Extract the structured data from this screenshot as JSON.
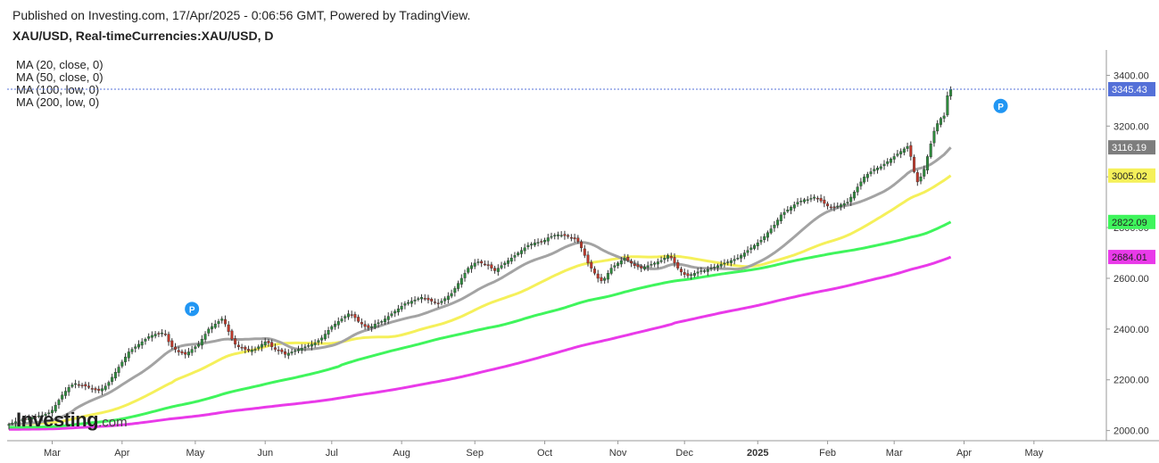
{
  "header": {
    "published": "Published on Investing.com, 17/Apr/2025 - 0:06:56 GMT, Powered by TradingView.",
    "symbol": "XAU/USD, Real-timeCurrencies:XAU/USD, D"
  },
  "legend": [
    "MA (20, close, 0)",
    "MA (50, close, 0)",
    "MA (100, low, 0)",
    "MA (200, low, 0)"
  ],
  "logo": {
    "main": "Investing",
    "suffix": ".com"
  },
  "chart_data": {
    "type": "line",
    "subtype": "candlestick",
    "title": "XAU/USD, Real-timeCurrencies:XAU/USD, D",
    "ylim": [
      1960,
      3500
    ],
    "y_ticks": [
      2000,
      2200,
      2400,
      2600,
      2800,
      3000,
      3200,
      3400
    ],
    "y_tick_labels": [
      "2000.00",
      "2200.00",
      "2400.00",
      "2600.00",
      "2800.00",
      "3000.00",
      "3200.00",
      "3400.00"
    ],
    "x_tick_labels": [
      "Mar",
      "Apr",
      "May",
      "Jun",
      "Jul",
      "Aug",
      "Sep",
      "Oct",
      "Nov",
      "Dec",
      "2025",
      "Feb",
      "Mar",
      "Apr",
      "May"
    ],
    "x_tick_index": [
      13,
      34,
      56,
      77,
      97,
      118,
      140,
      161,
      183,
      203,
      225,
      246,
      266,
      287,
      308
    ],
    "bar_count": 306,
    "close": [
      2025,
      2030,
      2035,
      2040,
      2043,
      2045,
      2048,
      2052,
      2055,
      2058,
      2060,
      2065,
      2070,
      2080,
      2100,
      2120,
      2140,
      2155,
      2170,
      2180,
      2185,
      2180,
      2178,
      2175,
      2170,
      2165,
      2160,
      2158,
      2165,
      2175,
      2190,
      2210,
      2230,
      2250,
      2270,
      2290,
      2310,
      2320,
      2330,
      2340,
      2350,
      2360,
      2370,
      2375,
      2380,
      2382,
      2385,
      2380,
      2350,
      2330,
      2320,
      2310,
      2305,
      2300,
      2310,
      2320,
      2330,
      2340,
      2360,
      2380,
      2400,
      2410,
      2420,
      2430,
      2440,
      2420,
      2390,
      2360,
      2340,
      2330,
      2325,
      2320,
      2315,
      2318,
      2320,
      2330,
      2340,
      2350,
      2345,
      2330,
      2320,
      2315,
      2310,
      2300,
      2305,
      2310,
      2315,
      2320,
      2325,
      2330,
      2335,
      2340,
      2345,
      2355,
      2365,
      2380,
      2395,
      2410,
      2420,
      2430,
      2440,
      2450,
      2460,
      2455,
      2445,
      2430,
      2420,
      2410,
      2405,
      2410,
      2420,
      2425,
      2430,
      2440,
      2450,
      2460,
      2470,
      2480,
      2490,
      2500,
      2505,
      2510,
      2515,
      2520,
      2525,
      2520,
      2515,
      2510,
      2505,
      2500,
      2510,
      2520,
      2530,
      2540,
      2560,
      2580,
      2600,
      2620,
      2640,
      2650,
      2660,
      2665,
      2660,
      2655,
      2650,
      2640,
      2630,
      2640,
      2650,
      2660,
      2670,
      2680,
      2690,
      2700,
      2710,
      2720,
      2730,
      2735,
      2740,
      2742,
      2745,
      2750,
      2760,
      2765,
      2770,
      2772,
      2770,
      2768,
      2765,
      2760,
      2755,
      2745,
      2720,
      2690,
      2660,
      2640,
      2620,
      2600,
      2590,
      2600,
      2620,
      2640,
      2650,
      2660,
      2670,
      2680,
      2670,
      2660,
      2650,
      2645,
      2640,
      2645,
      2650,
      2655,
      2660,
      2665,
      2670,
      2680,
      2690,
      2680,
      2660,
      2640,
      2625,
      2615,
      2610,
      2615,
      2620,
      2625,
      2630,
      2630,
      2635,
      2640,
      2645,
      2650,
      2655,
      2660,
      2665,
      2670,
      2675,
      2680,
      2690,
      2700,
      2710,
      2720,
      2730,
      2740,
      2750,
      2765,
      2780,
      2795,
      2810,
      2830,
      2850,
      2860,
      2870,
      2880,
      2890,
      2900,
      2905,
      2910,
      2910,
      2915,
      2920,
      2915,
      2905,
      2895,
      2885,
      2880,
      2880,
      2885,
      2890,
      2895,
      2900,
      2920,
      2940,
      2960,
      2980,
      3000,
      3010,
      3020,
      3030,
      3035,
      3040,
      3050,
      3060,
      3070,
      3080,
      3090,
      3100,
      3110,
      3120,
      3080,
      3020,
      2980,
      3000,
      3030,
      3080,
      3130,
      3180,
      3210,
      3230,
      3240,
      3320,
      3345
    ],
    "moving_averages": [
      {
        "name": "MA (20, close, 0)",
        "color": "#a3a3a3",
        "last": 3116.19,
        "label": "3116.19"
      },
      {
        "name": "MA (50, close, 0)",
        "color": "#f5f05a",
        "last": 3005.02,
        "label": "3005.02"
      },
      {
        "name": "MA (100, low, 0)",
        "color": "#3ff55c",
        "last": 2822.09,
        "label": "2822.09"
      },
      {
        "name": "MA (200, low, 0)",
        "color": "#e93ae9",
        "last": 2684.01,
        "label": "2684.01"
      }
    ],
    "last_price": {
      "value": 3345.43,
      "label": "3345.43",
      "color": "#5470d8"
    },
    "markers": [
      {
        "index": 55,
        "value": 2430,
        "text": "P",
        "color": "#2196f3"
      },
      {
        "index": 298,
        "value": 3230,
        "text": "P",
        "color": "#2196f3"
      }
    ],
    "colors": {
      "up": "#2e8b3d",
      "down": "#c0392b",
      "grid": "#e8e8e8"
    }
  }
}
